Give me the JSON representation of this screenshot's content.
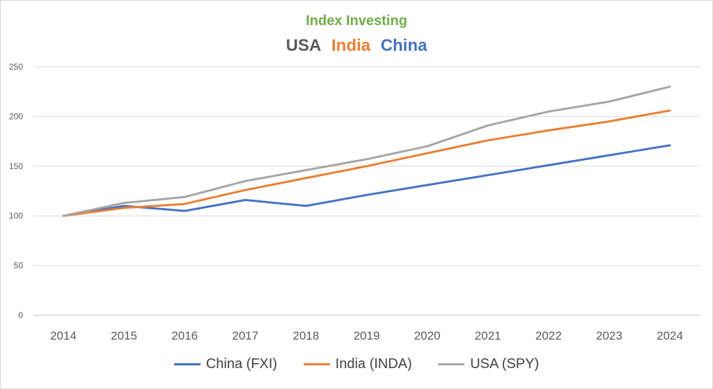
{
  "chart_data": {
    "type": "line",
    "title": "Index Investing",
    "subtitle_parts": [
      {
        "text": "USA",
        "color": "#595959"
      },
      {
        "text": "India",
        "color": "#ED7D31"
      },
      {
        "text": "China",
        "color": "#4472C4"
      }
    ],
    "title_color": "#70AD47",
    "categories": [
      "2014",
      "2015",
      "2016",
      "2017",
      "2018",
      "2019",
      "2020",
      "2021",
      "2022",
      "2023",
      "2024"
    ],
    "ylim": [
      0,
      250
    ],
    "yticks": [
      0,
      50,
      100,
      150,
      200,
      250
    ],
    "grid": true,
    "legend_position": "bottom",
    "series": [
      {
        "name": "China (FXI)",
        "color": "#4472C4",
        "values": [
          100,
          110,
          105,
          116,
          110,
          121,
          131,
          141,
          151,
          161,
          171
        ]
      },
      {
        "name": "India (INDA)",
        "color": "#ED7D31",
        "values": [
          100,
          108,
          112,
          126,
          138,
          150,
          163,
          176,
          186,
          195,
          206
        ]
      },
      {
        "name": "USA (SPY)",
        "color": "#A5A5A5",
        "values": [
          100,
          113,
          119,
          135,
          146,
          157,
          170,
          191,
          205,
          215,
          230
        ]
      }
    ]
  }
}
